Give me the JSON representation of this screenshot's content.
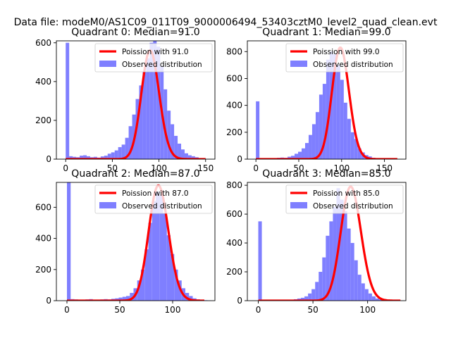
{
  "figure_title": "Data file: modeM0/AS1C09_011T09_9000006494_53403cztM0_level2_quad_clean.evt",
  "colors": {
    "bar": "#7f7fff",
    "line": "#ff0000",
    "axis": "#000000"
  },
  "chart_data": [
    {
      "type": "bar",
      "title": "Quadrant 0: Median=91.0",
      "xlim": [
        -10,
        160
      ],
      "ylim": [
        0,
        610
      ],
      "xticks": [
        0,
        50,
        100,
        150
      ],
      "xtick_labels": [
        "0",
        "50",
        "100",
        "150"
      ],
      "yticks": [
        0,
        200,
        400,
        600
      ],
      "ytick_labels": [
        "0",
        "200",
        "400",
        "600"
      ],
      "bin_start": 0,
      "bin_width": 3.75,
      "counts": [
        600,
        15,
        12,
        10,
        18,
        20,
        15,
        10,
        12,
        8,
        14,
        18,
        28,
        35,
        45,
        62,
        75,
        110,
        170,
        230,
        310,
        380,
        450,
        520,
        600,
        610,
        580,
        480,
        360,
        250,
        180,
        120,
        80,
        50,
        30,
        20,
        15,
        10,
        5,
        3
      ],
      "curve": {
        "label": "Poission with 91.0",
        "mean": 91.0,
        "peak": 560,
        "x_range": [
          0,
          150
        ]
      },
      "legend": [
        "Poission with 91.0",
        "Observed distribution"
      ]
    },
    {
      "type": "bar",
      "title": "Quadrant 1: Median=99.0",
      "xlim": [
        -10,
        175
      ],
      "ylim": [
        0,
        880
      ],
      "xticks": [
        0,
        50,
        100,
        150
      ],
      "xtick_labels": [
        "0",
        "50",
        "100",
        "150"
      ],
      "yticks": [
        0,
        200,
        400,
        600,
        800
      ],
      "ytick_labels": [
        "0",
        "200",
        "400",
        "600",
        "800"
      ],
      "bin_start": 0,
      "bin_width": 4.1,
      "counts": [
        430,
        0,
        0,
        0,
        0,
        0,
        10,
        12,
        10,
        18,
        25,
        40,
        55,
        80,
        120,
        180,
        260,
        350,
        480,
        560,
        740,
        800,
        780,
        700,
        590,
        420,
        300,
        200,
        150,
        80,
        50,
        30,
        20,
        10,
        5,
        3,
        0,
        0,
        0,
        0
      ],
      "curve": {
        "label": "Poission with 99.0",
        "mean": 99.0,
        "peak": 830,
        "x_range": [
          0,
          165
        ]
      },
      "legend": [
        "Poission with 99.0",
        "Observed distribution"
      ]
    },
    {
      "type": "bar",
      "title": "Quadrant 2: Median=87.0",
      "xlim": [
        -10,
        140
      ],
      "ylim": [
        0,
        760
      ],
      "xticks": [
        0,
        50,
        100
      ],
      "xtick_labels": [
        "0",
        "50",
        "100"
      ],
      "yticks": [
        0,
        200,
        400,
        600
      ],
      "ytick_labels": [
        "0",
        "200",
        "400",
        "600"
      ],
      "bin_start": 0,
      "bin_width": 3.5,
      "counts": [
        760,
        10,
        8,
        5,
        6,
        8,
        10,
        6,
        5,
        8,
        10,
        8,
        12,
        15,
        20,
        25,
        30,
        50,
        80,
        130,
        200,
        330,
        500,
        640,
        700,
        680,
        560,
        420,
        300,
        200,
        130,
        80,
        50,
        30,
        15,
        8,
        5,
        3,
        2,
        0
      ],
      "curve": {
        "label": "Poission with 87.0",
        "mean": 87.0,
        "peak": 740,
        "x_range": [
          0,
          130
        ]
      },
      "legend": [
        "Poission with 87.0",
        "Observed distribution"
      ]
    },
    {
      "type": "bar",
      "title": "Quadrant 3: Median=85.0",
      "xlim": [
        -10,
        135
      ],
      "ylim": [
        0,
        820
      ],
      "xticks": [
        0,
        50,
        100
      ],
      "xtick_labels": [
        "0",
        "50",
        "100"
      ],
      "yticks": [
        0,
        200,
        400,
        600,
        800
      ],
      "ytick_labels": [
        "0",
        "200",
        "400",
        "600",
        "800"
      ],
      "bin_start": 0,
      "bin_width": 3.25,
      "counts": [
        550,
        0,
        0,
        0,
        0,
        0,
        0,
        0,
        0,
        0,
        10,
        15,
        20,
        30,
        50,
        80,
        130,
        200,
        300,
        450,
        550,
        650,
        780,
        700,
        620,
        500,
        400,
        280,
        180,
        120,
        80,
        50,
        30,
        15,
        8,
        5,
        3,
        2,
        0,
        0
      ],
      "curve": {
        "label": "Poission with 85.0",
        "mean": 85.0,
        "peak": 790,
        "x_range": [
          0,
          130
        ]
      },
      "legend": [
        "Poission with 85.0",
        "Observed distribution"
      ]
    }
  ]
}
